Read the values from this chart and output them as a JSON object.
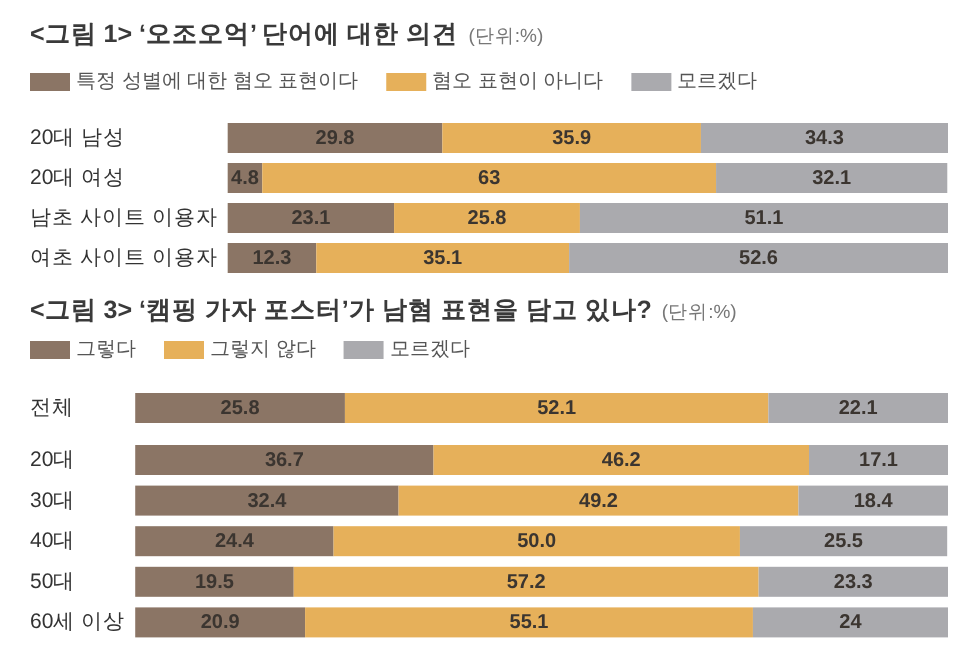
{
  "chart_data": [
    {
      "type": "bar",
      "orientation": "horizontal",
      "stacked": true,
      "title": "<그림 1> ‘오조오억’ 단어에 대한 의견",
      "subtitle": "(단위:%)",
      "categories": [
        "20대 남성",
        "20대 여성",
        "남초 사이트 이용자",
        "여초 사이트 이용자"
      ],
      "series": [
        {
          "name": "특정 성별에 대한 혐오 표현이다",
          "color": "#8b7565",
          "values": [
            29.8,
            4.8,
            23.1,
            12.3
          ]
        },
        {
          "name": "혐오 표현이 아니다",
          "color": "#e6b05a",
          "values": [
            35.9,
            63,
            25.8,
            35.1
          ]
        },
        {
          "name": "모르겠다",
          "color": "#aaaaae",
          "values": [
            34.3,
            32.1,
            51.1,
            52.6
          ]
        }
      ],
      "xlim": [
        0,
        100
      ],
      "tick_labels": "y",
      "legend": "top left",
      "data_labels": true
    },
    {
      "type": "bar",
      "orientation": "horizontal",
      "stacked": true,
      "title": "<그림 3> ‘캠핑 가자 포스터’가 남혐 표현을 담고 있나?",
      "subtitle": "(단위:%)",
      "categories": [
        "전체",
        "20대",
        "30대",
        "40대",
        "50대",
        "60세 이상"
      ],
      "series": [
        {
          "name": "그렇다",
          "color": "#8b7565",
          "values": [
            25.8,
            36.7,
            32.4,
            24.4,
            19.5,
            20.9
          ],
          "value_labels": [
            "25.8",
            "36.7",
            "32.4",
            "24.4",
            "19.5",
            "20.9"
          ]
        },
        {
          "name": "그렇지 않다",
          "color": "#e6b05a",
          "values": [
            52.1,
            46.2,
            49.2,
            50.0,
            57.2,
            55.1
          ],
          "value_labels": [
            "52.1",
            "46.2",
            "49.2",
            "50.0",
            "57.2",
            "55.1"
          ]
        },
        {
          "name": "모르겠다",
          "color": "#aaaaae",
          "values": [
            22.1,
            17.1,
            18.4,
            25.5,
            23.3,
            24
          ],
          "value_labels": [
            "22.1",
            "17.1",
            "18.4",
            "25.5",
            "23.3",
            "24"
          ]
        }
      ],
      "xlim": [
        0,
        100
      ],
      "tick_labels": "y",
      "legend": "top left"
    }
  ]
}
